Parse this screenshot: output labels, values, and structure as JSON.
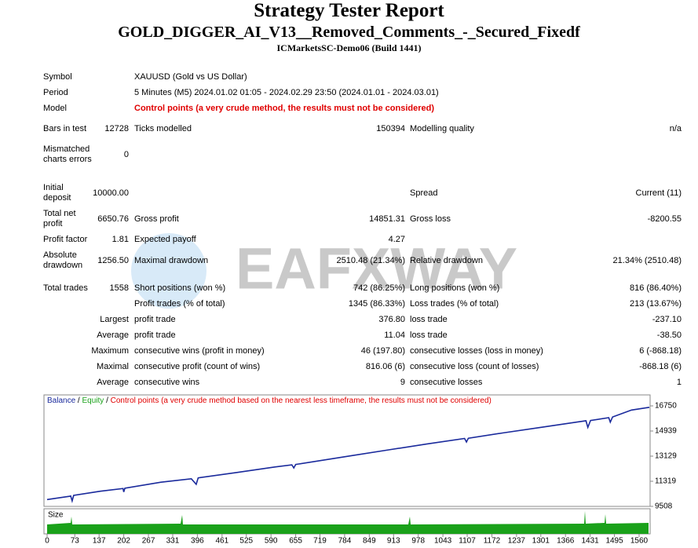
{
  "header": {
    "title": "Strategy Tester Report",
    "subtitle": "GOLD_DIGGER_AI_V13__Removed_Comments_-_Secured_Fixedf",
    "server": "ICMarketsSC-Demo06 (Build 1441)"
  },
  "rows": [
    {
      "label1": "Symbol",
      "text": "XAUUSD (Gold vs US Dollar)"
    },
    {
      "label1": "Period",
      "text": "5 Minutes (M5) 2024.01.02 01:05 - 2024.02.29 23:50 (2024.01.01 - 2024.03.01)"
    },
    {
      "label1": "Model",
      "warning": "Control points (a very crude method, the results must not be considered)"
    },
    {
      "label1": "Bars in test",
      "value1": "12728",
      "label2": "Ticks modelled",
      "value2": "150394",
      "label3": "Modelling quality",
      "value3": "n/a"
    },
    {
      "label1": "Mismatched charts errors",
      "value1": "0"
    },
    {
      "label1": "Initial deposit",
      "value1": "10000.00",
      "label3": "Spread",
      "value3": "Current (11)"
    },
    {
      "label1": "Total net profit",
      "value1": "6650.76",
      "label2": "Gross profit",
      "value2": "14851.31",
      "label3": "Gross loss",
      "value3": "-8200.55"
    },
    {
      "label1": "Profit factor",
      "value1": "1.81",
      "label2": "Expected payoff",
      "value2": "4.27"
    },
    {
      "label1": "Absolute drawdown",
      "value1": "1256.50",
      "label2": "Maximal drawdown",
      "value2": "2510.48 (21.34%)",
      "label3": "Relative drawdown",
      "value3": "21.34% (2510.48)"
    },
    {
      "label1": "Total trades",
      "value1": "1558",
      "label2": "Short positions (won %)",
      "value2": "742 (86.25%)",
      "label3": "Long positions (won %)",
      "value3": "816 (86.40%)"
    },
    {
      "label2": "Profit trades (% of total)",
      "value2": "1345 (86.33%)",
      "label3": "Loss trades (% of total)",
      "value3": "213 (13.67%)"
    },
    {
      "prefix": "Largest",
      "label2": "profit trade",
      "value2": "376.80",
      "label3": "loss trade",
      "value3": "-237.10"
    },
    {
      "prefix": "Average",
      "label2": "profit trade",
      "value2": "11.04",
      "label3": "loss trade",
      "value3": "-38.50"
    },
    {
      "prefix": "Maximum",
      "label2": "consecutive wins (profit in money)",
      "value2": "46 (197.80)",
      "label3": "consecutive losses (loss in money)",
      "value3": "6 (-868.18)"
    },
    {
      "prefix": "Maximal",
      "label2": "consecutive profit (count of wins)",
      "value2": "816.06 (6)",
      "label3": "consecutive loss (count of losses)",
      "value3": "-868.18 (6)"
    },
    {
      "prefix": "Average",
      "label2": "consecutive wins",
      "value2": "9",
      "label3": "consecutive losses",
      "value3": "1"
    }
  ],
  "watermark": "EAFXWAY",
  "chart_data": {
    "type": "line",
    "x": [
      0,
      60,
      62,
      66,
      70,
      140,
      200,
      202,
      205,
      300,
      380,
      393,
      398,
      500,
      600,
      645,
      650,
      655,
      800,
      900,
      1000,
      1100,
      1105,
      1110,
      1200,
      1300,
      1400,
      1420,
      1425,
      1432,
      1480,
      1484,
      1490,
      1540,
      1587
    ],
    "series": [
      {
        "name": "Balance",
        "color": "#1a2a9c",
        "values": [
          10000,
          10240,
          10260,
          9900,
          10300,
          10600,
          10800,
          10550,
          10820,
          11250,
          11500,
          11100,
          11560,
          11950,
          12350,
          12500,
          12280,
          12530,
          13150,
          13580,
          14000,
          14400,
          14150,
          14420,
          14800,
          15200,
          15600,
          15680,
          15200,
          15700,
          15900,
          15580,
          15950,
          16450,
          16650
        ]
      }
    ],
    "legend_separator": "/",
    "equity_label": "Equity",
    "equity_color": "#1aa11a",
    "note": "Control points (a very crude method based on the nearest less timeframe, the results must not be considered)",
    "note_color": "#e00000",
    "size_label": "Size",
    "xlim": [
      0,
      1589
    ],
    "xticks": [
      0,
      73,
      137,
      202,
      267,
      331,
      396,
      461,
      525,
      590,
      655,
      719,
      784,
      849,
      913,
      978,
      1043,
      1107,
      1172,
      1237,
      1301,
      1366,
      1431,
      1495,
      1560
    ],
    "ylim": [
      9508,
      17542
    ],
    "yticks": [
      9508,
      11319,
      13129,
      14939,
      16750
    ]
  }
}
